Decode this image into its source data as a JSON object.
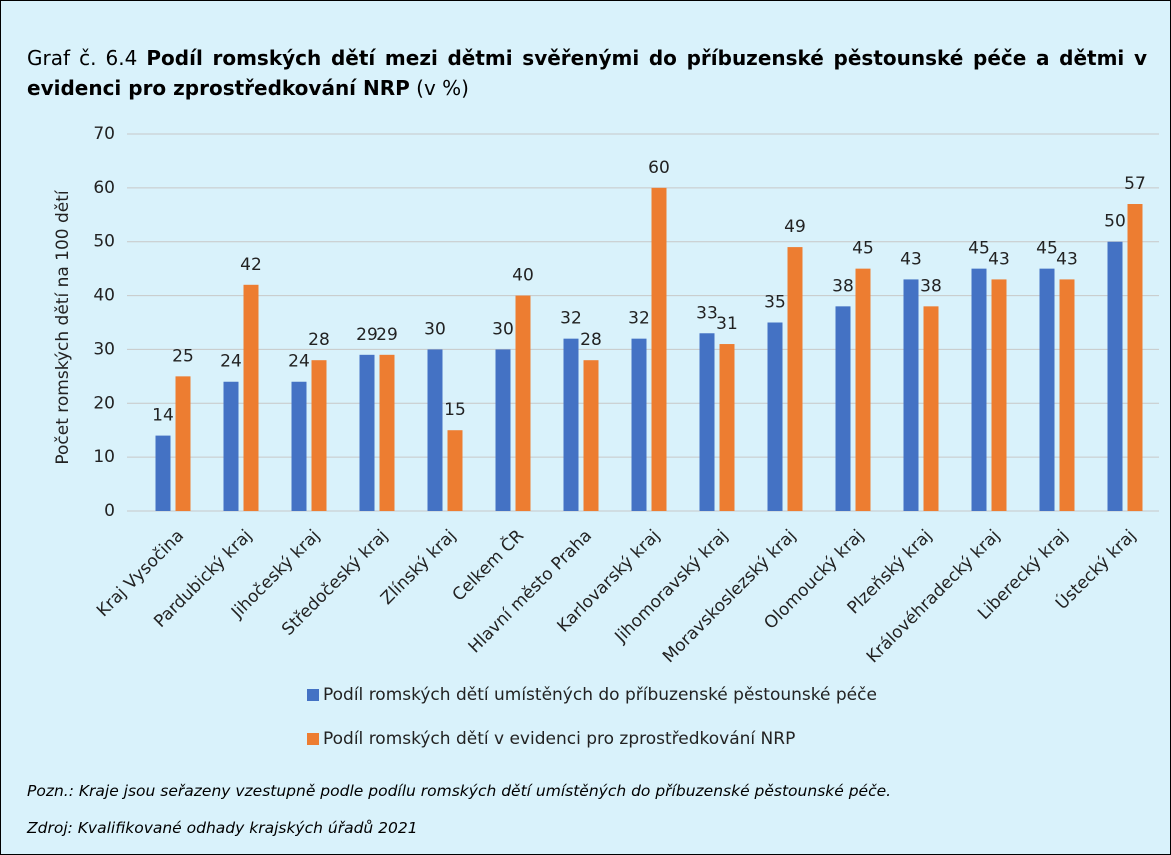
{
  "chart_data": {
    "type": "bar",
    "title_prefix": "Graf č. 6.4",
    "title": "Podíl romských dětí mezi dětmi svěřenými do příbuzenské pěstounské péče a dětmi v evidenci pro zprostředkování NRP",
    "title_suffix": "(v %)",
    "y_label": "Počet romských dětí na 100 dětí",
    "categories": [
      "Kraj Vysočina",
      "Pardubický kraj",
      "Jihočeský kraj",
      "Středočeský kraj",
      "Zlínský kraj",
      "Celkem ČR",
      "Hlavní město Praha",
      "Karlovarský kraj",
      "Jihomoravský kraj",
      "Moravskoslezský kraj",
      "Olomoucký kraj",
      "Plzeňský kraj",
      "Královéhradecký kraj",
      "Liberecký kraj",
      "Ústecký kraj"
    ],
    "series": [
      {
        "name": "Podíl romských dětí umístěných do příbuzenské pěstounské péče",
        "color": "#4472c4",
        "values": [
          14,
          24,
          24,
          29,
          30,
          30,
          32,
          32,
          33,
          35,
          38,
          43,
          45,
          45,
          50
        ]
      },
      {
        "name": "Podíl romských dětí v evidenci pro zprostředkování NRP",
        "color": "#ed7d31",
        "values": [
          25,
          42,
          28,
          29,
          15,
          40,
          28,
          60,
          31,
          49,
          45,
          38,
          43,
          43,
          57
        ]
      }
    ],
    "ylim": [
      0,
      70
    ],
    "yticks": [
      0,
      10,
      20,
      30,
      40,
      50,
      60,
      70
    ],
    "grid": true,
    "notes": [
      "Pozn.: Kraje jsou seřazeny vzestupně podle podílu romských dětí umístěných do příbuzenské pěstounské péče.",
      "Zdroj: Kvalifikované odhady krajských úřadů 2021"
    ]
  }
}
